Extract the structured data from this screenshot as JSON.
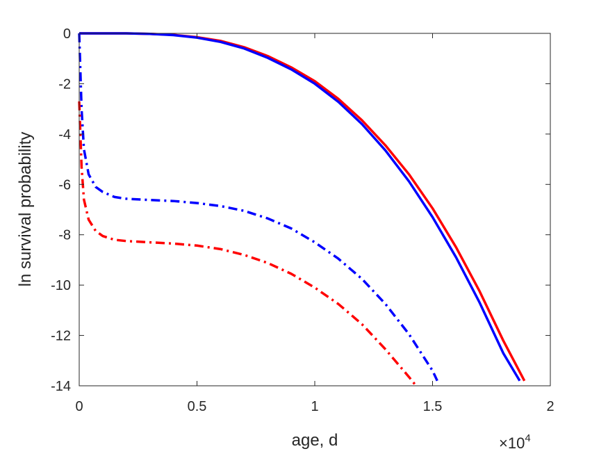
{
  "chart_data": {
    "type": "line",
    "xlabel": "age, d",
    "ylabel": "ln survival probability",
    "x_exponent_label": {
      "base": "×10",
      "exponent": "4"
    },
    "xlim": [
      0,
      20000
    ],
    "ylim": [
      -14,
      0
    ],
    "xticks": [
      0,
      5000,
      10000,
      15000,
      20000
    ],
    "xtick_labels": [
      "0",
      "0.5",
      "1",
      "1.5",
      "2"
    ],
    "yticks": [
      0,
      -2,
      -4,
      -6,
      -8,
      -10,
      -12,
      -14
    ],
    "ytick_labels": [
      "0",
      "-2",
      "-4",
      "-6",
      "-8",
      "-10",
      "-12",
      "-14"
    ],
    "grid": false,
    "series": [
      {
        "color": "#ff0000",
        "style": "solid",
        "x": [
          0,
          1000,
          2000,
          3000,
          4000,
          5000,
          6000,
          7000,
          8000,
          9000,
          10000,
          11000,
          12000,
          13000,
          14000,
          15000,
          16000,
          17000,
          18000,
          18900
        ],
        "y": [
          0,
          0,
          0,
          -0.02,
          -0.06,
          -0.15,
          -0.3,
          -0.55,
          -0.9,
          -1.35,
          -1.9,
          -2.6,
          -3.45,
          -4.45,
          -5.6,
          -6.95,
          -8.5,
          -10.25,
          -12.2,
          -13.8
        ]
      },
      {
        "color": "#0000ff",
        "style": "solid",
        "x": [
          0,
          1000,
          2000,
          3000,
          4000,
          5000,
          6000,
          7000,
          8000,
          9000,
          10000,
          11000,
          12000,
          13000,
          14000,
          15000,
          16000,
          17000,
          18000,
          18700
        ],
        "y": [
          0,
          0,
          0,
          -0.02,
          -0.07,
          -0.17,
          -0.34,
          -0.6,
          -0.97,
          -1.43,
          -2.0,
          -2.72,
          -3.6,
          -4.65,
          -5.88,
          -7.3,
          -8.9,
          -10.7,
          -12.7,
          -13.8
        ]
      },
      {
        "color": "#0000ff",
        "style": "dashdot",
        "x": [
          0,
          50,
          100,
          200,
          400,
          700,
          1000,
          1500,
          2000,
          3000,
          4000,
          5000,
          6000,
          7000,
          8000,
          9000,
          10000,
          11000,
          12000,
          13000,
          14000,
          15000,
          15200
        ],
        "y": [
          0,
          -1.5,
          -3.0,
          -4.6,
          -5.6,
          -6.1,
          -6.3,
          -6.5,
          -6.57,
          -6.62,
          -6.66,
          -6.74,
          -6.86,
          -7.05,
          -7.35,
          -7.75,
          -8.3,
          -8.95,
          -9.75,
          -10.75,
          -11.95,
          -13.4,
          -13.8
        ]
      },
      {
        "color": "#ff0000",
        "style": "dashdot",
        "x": [
          0,
          50,
          100,
          200,
          400,
          700,
          1000,
          1500,
          2000,
          3000,
          4000,
          5000,
          6000,
          7000,
          8000,
          9000,
          10000,
          11000,
          12000,
          13000,
          14000,
          14300
        ],
        "y": [
          -2.7,
          -4.0,
          -5.3,
          -6.6,
          -7.4,
          -7.85,
          -8.05,
          -8.2,
          -8.25,
          -8.3,
          -8.35,
          -8.43,
          -8.57,
          -8.8,
          -9.12,
          -9.55,
          -10.1,
          -10.75,
          -11.55,
          -12.55,
          -13.65,
          -14.0
        ]
      }
    ]
  }
}
